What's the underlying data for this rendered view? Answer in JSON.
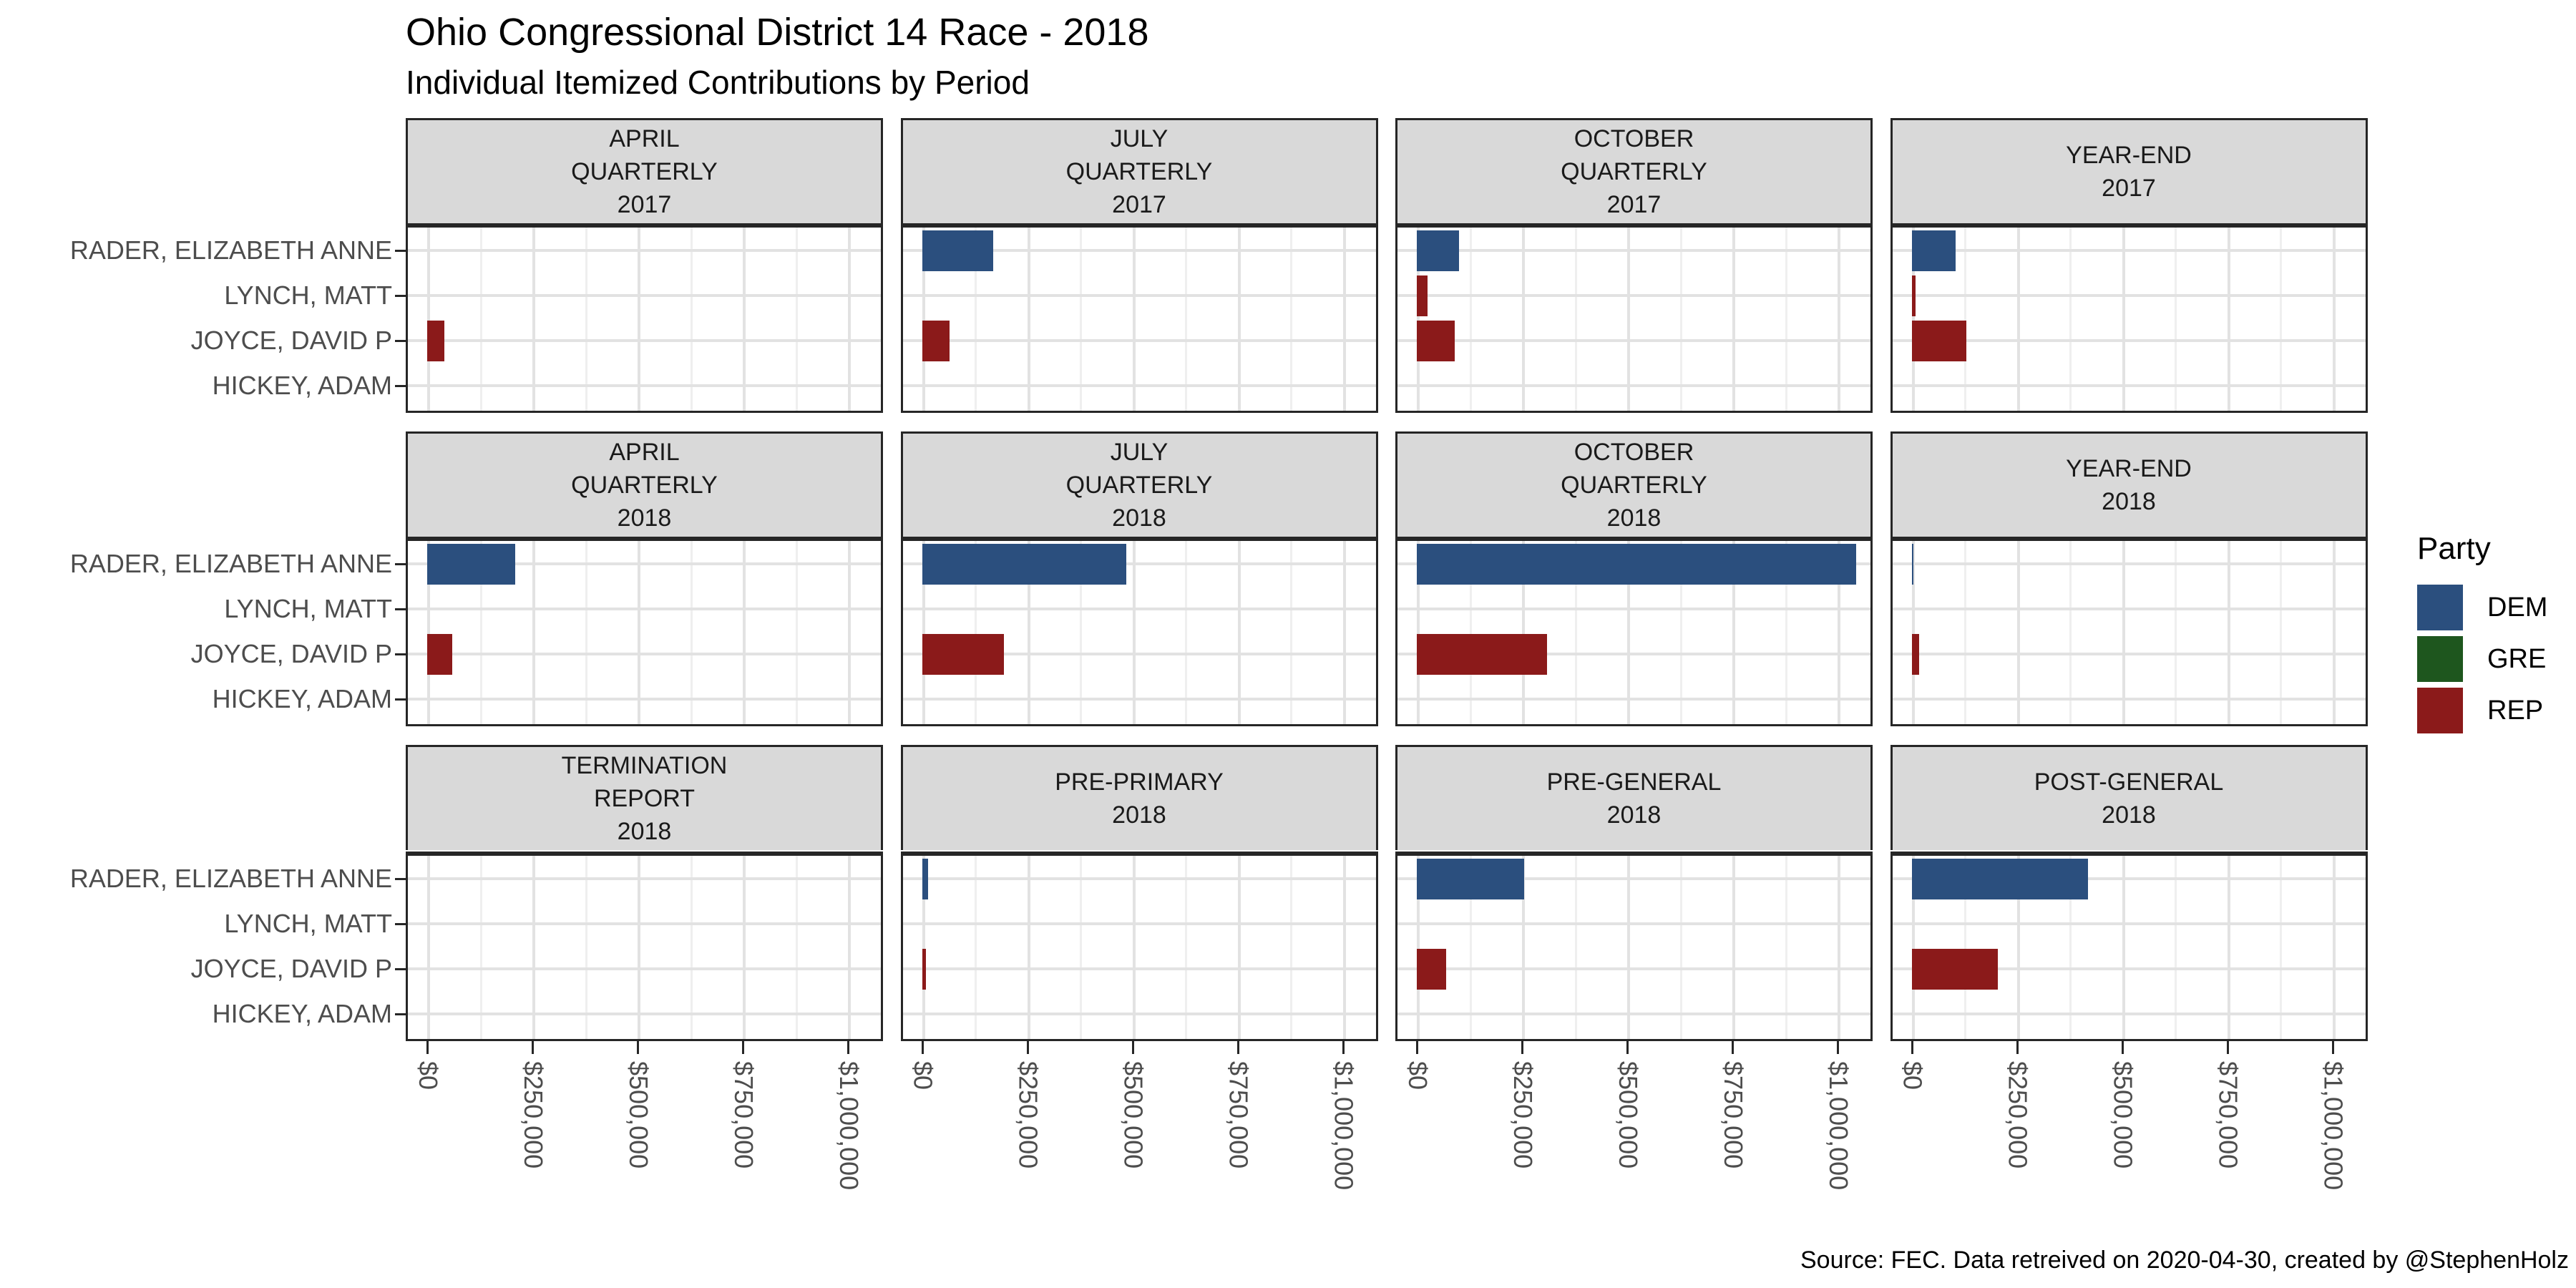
{
  "header": {
    "title": "Ohio Congressional District 14 Race - 2018",
    "subtitle": "Individual Itemized Contributions by Period"
  },
  "caption": "Source: FEC. Data retreived on 2020-04-30, created by @StephenHolz",
  "legend": {
    "title": "Party",
    "entries": [
      {
        "label": "DEM",
        "color": "#2B4F7E"
      },
      {
        "label": "GRE",
        "color": "#1E561E"
      },
      {
        "label": "REP",
        "color": "#8B1A1A"
      }
    ]
  },
  "x_axis": {
    "tick_labels": [
      "$0",
      "$250,000",
      "$500,000",
      "$750,000",
      "$1,000,000"
    ],
    "tick_values": [
      0,
      250000,
      500000,
      750000,
      1000000
    ]
  },
  "y_axis": {
    "categories": [
      "RADER, ELIZABETH ANNE",
      "LYNCH, MATT",
      "JOYCE, DAVID P",
      "HICKEY, ADAM"
    ]
  },
  "chart_data": {
    "type": "bar",
    "orientation": "horizontal",
    "title": "Ohio Congressional District 14 Race - 2018",
    "subtitle": "Individual Itemized Contributions by Period",
    "value_unit": "USD",
    "xlim": [
      0,
      1100000
    ],
    "x_major_break": 250000,
    "x_minor_break": 125000,
    "grid": true,
    "legend_position": "right",
    "facet_layout": {
      "rows": 3,
      "cols": 4
    },
    "categories": [
      "RADER, ELIZABETH ANNE",
      "LYNCH, MATT",
      "JOYCE, DAVID P",
      "HICKEY, ADAM"
    ],
    "category_parties": [
      "DEM",
      "REP",
      "REP",
      "GRE"
    ],
    "party_colors": {
      "DEM": "#2B4F7E",
      "GRE": "#1E561E",
      "REP": "#8B1A1A"
    },
    "facets": [
      {
        "label_lines": [
          "APRIL",
          "QUARTERLY",
          "2017"
        ],
        "values": [
          0,
          0,
          40000,
          0
        ]
      },
      {
        "label_lines": [
          "JULY",
          "QUARTERLY",
          "2017"
        ],
        "values": [
          170000,
          0,
          65000,
          0
        ]
      },
      {
        "label_lines": [
          "OCTOBER",
          "QUARTERLY",
          "2017"
        ],
        "values": [
          100000,
          25000,
          90000,
          0
        ]
      },
      {
        "label_lines": [
          "YEAR-END",
          "2017"
        ],
        "values": [
          105000,
          10000,
          130000,
          0
        ]
      },
      {
        "label_lines": [
          "APRIL",
          "QUARTERLY",
          "2018"
        ],
        "values": [
          210000,
          0,
          60000,
          0
        ]
      },
      {
        "label_lines": [
          "JULY",
          "QUARTERLY",
          "2018"
        ],
        "values": [
          485000,
          0,
          195000,
          0
        ]
      },
      {
        "label_lines": [
          "OCTOBER",
          "QUARTERLY",
          "2018"
        ],
        "values": [
          1045000,
          0,
          310000,
          0
        ]
      },
      {
        "label_lines": [
          "YEAR-END",
          "2018"
        ],
        "values": [
          3000,
          0,
          18000,
          0
        ]
      },
      {
        "label_lines": [
          "TERMINATION",
          "REPORT",
          "2018"
        ],
        "values": [
          0,
          0,
          0,
          0
        ]
      },
      {
        "label_lines": [
          "PRE-PRIMARY",
          "2018"
        ],
        "values": [
          15000,
          0,
          10000,
          0
        ]
      },
      {
        "label_lines": [
          "PRE-GENERAL",
          "2018"
        ],
        "values": [
          255000,
          0,
          70000,
          0
        ]
      },
      {
        "label_lines": [
          "POST-GENERAL",
          "2018"
        ],
        "values": [
          420000,
          0,
          205000,
          0
        ]
      }
    ]
  }
}
